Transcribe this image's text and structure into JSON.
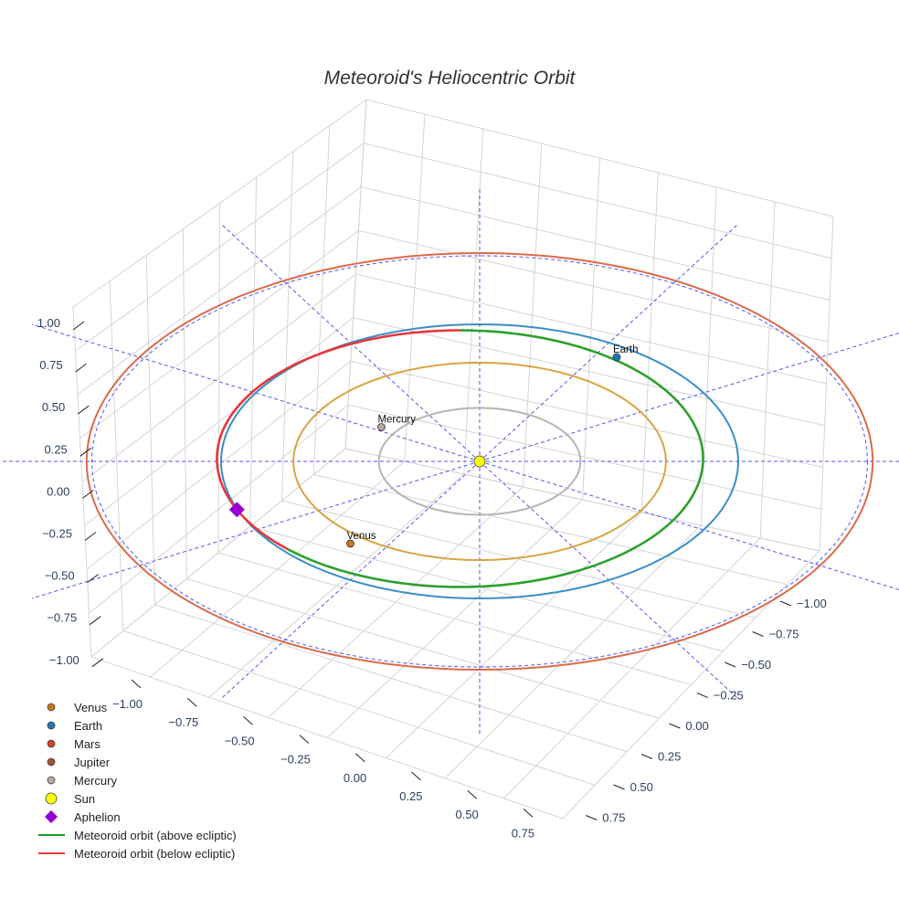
{
  "chart_data": {
    "type": "scatter",
    "title": "Meteoroid's Heliocentric Orbit",
    "axes": {
      "z_ticks": [
        "1.00",
        "0.75",
        "0.50",
        "0.25",
        "0.00",
        "−0.25",
        "−0.50",
        "−0.75",
        "−1.00"
      ],
      "x_ticks": [
        "−1.00",
        "−0.75",
        "−0.50",
        "−0.25",
        "0.00",
        "0.25",
        "0.50",
        "0.75"
      ],
      "y_ticks": [
        "−1.00",
        "−0.75",
        "−0.50",
        "−0.25",
        "0.00",
        "0.25",
        "0.50",
        "0.75"
      ],
      "range": [
        -1,
        1
      ],
      "grid": true,
      "ecliptic_reference_grid": true
    },
    "orbits": [
      {
        "name": "Mercury",
        "radius_au": 0.39,
        "color": "#bdb3b0"
      },
      {
        "name": "Venus",
        "radius_au": 0.72,
        "color": "#d9a441"
      },
      {
        "name": "Earth",
        "radius_au": 1.0,
        "color": "#3a8ec6"
      },
      {
        "name": "Mars",
        "radius_au": 1.52,
        "color": "#dc6a4a"
      }
    ],
    "bodies": [
      {
        "name": "Mercury",
        "label": "Mercury",
        "color": "#b7a4a2"
      },
      {
        "name": "Venus",
        "label": "Venus",
        "color": "#c8761d"
      },
      {
        "name": "Earth",
        "label": "Earth",
        "color": "#1f77b4"
      },
      {
        "name": "Sun",
        "label": "",
        "color": "#ffff00"
      }
    ],
    "meteoroid_orbit": {
      "semi_major_axis_au": 0.94,
      "eccentricity": 0.09,
      "above_color": "#2ca02c",
      "below_color": "#e8373c",
      "aphelion_color": "#9400d3"
    },
    "legend": {
      "position": "bottom-left",
      "entries": [
        {
          "label": "Venus",
          "symbol": "circle",
          "color": "#c8761d"
        },
        {
          "label": "Earth",
          "symbol": "circle",
          "color": "#1f77b4"
        },
        {
          "label": "Mars",
          "symbol": "circle",
          "color": "#d5432a"
        },
        {
          "label": "Jupiter",
          "symbol": "circle",
          "color": "#a0522d"
        },
        {
          "label": "Mercury",
          "symbol": "circle",
          "color": "#bba6a3"
        },
        {
          "label": "Sun",
          "symbol": "big-circle",
          "color": "#ffff00"
        },
        {
          "label": "Aphelion",
          "symbol": "diamond",
          "color": "#9400d3"
        },
        {
          "label": "Meteoroid orbit (above ecliptic)",
          "symbol": "line",
          "color": "#1e9a1e"
        },
        {
          "label": "Meteoroid orbit (below ecliptic)",
          "symbol": "line",
          "color": "#e8373c"
        }
      ]
    }
  }
}
